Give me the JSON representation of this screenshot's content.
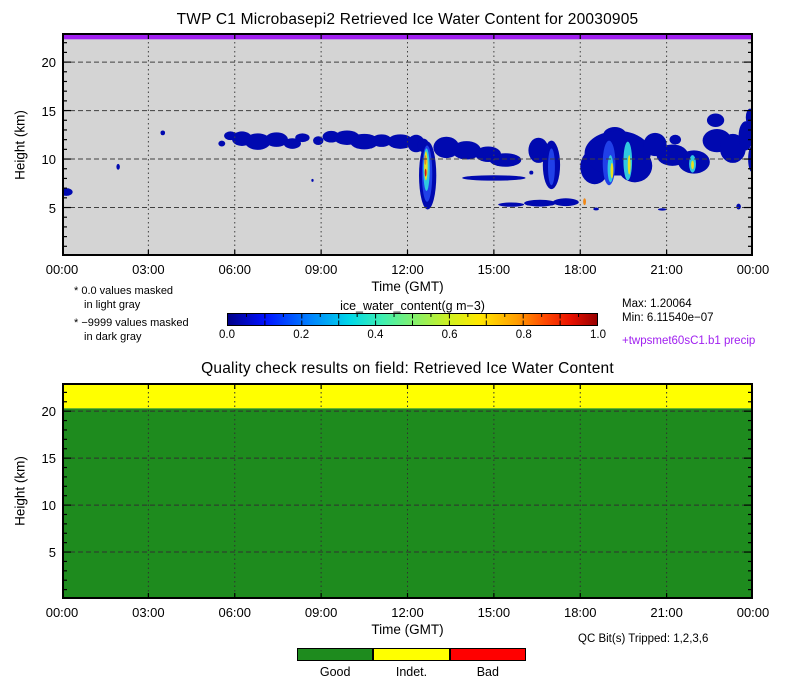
{
  "colors": {
    "plot_bg_gray": "#d4d4d4",
    "precip_purple": "#a020f0",
    "grid": "#404040",
    "palette": {
      "navy": "#0009b0",
      "blue": "#2040e8",
      "cyan": "#30c8e0",
      "green": "#50d860",
      "yellow": "#e8e020",
      "orange": "#f08818",
      "red": "#d81810"
    }
  },
  "top_chart": {
    "title": "TWP C1 Microbasepi2 Retrieved Ice Water Content for 20030905",
    "ylabel": "Height (km)",
    "xlabel": "Time (GMT)",
    "x_ticks": [
      "00:00",
      "03:00",
      "06:00",
      "09:00",
      "12:00",
      "15:00",
      "18:00",
      "21:00",
      "00:00"
    ],
    "y_ticks": [
      "20",
      "15",
      "10",
      "5"
    ]
  },
  "notes": {
    "masked_note_1a": "* 0.0 values masked",
    "masked_note_1b": "in light gray",
    "masked_note_2a": "* −9999 values masked",
    "masked_note_2b": "in dark gray",
    "max_label": "Max: 1.20064",
    "min_label": "Min: 6.11540e−07",
    "precip_label": "+twpsmet60sC1.b1 precip"
  },
  "colorbar": {
    "title": "ice_water_content(g m−3)",
    "tick_labels": [
      "0.0",
      "0.2",
      "0.4",
      "0.6",
      "0.8",
      "1.0"
    ]
  },
  "qc_chart": {
    "title": "Quality check results on field: Retrieved Ice Water Content",
    "ylabel": "Height (km)",
    "xlabel": "Time (GMT)",
    "x_ticks": [
      "00:00",
      "03:00",
      "06:00",
      "09:00",
      "12:00",
      "15:00",
      "18:00",
      "21:00",
      "00:00"
    ],
    "y_ticks": [
      "20",
      "15",
      "10",
      "5"
    ],
    "qc_bits_label": "QC Bit(s) Tripped: 1,2,3,6"
  },
  "qc_legend": {
    "items": [
      {
        "label": "Good",
        "color": "#1e8b1e"
      },
      {
        "label": "Indet.",
        "color": "#ffff00"
      },
      {
        "label": "Bad",
        "color": "#ff0000"
      }
    ]
  },
  "chart_data": [
    {
      "type": "heatmap",
      "title": "TWP C1 Microbasepi2 Retrieved Ice Water Content for 20030905",
      "xlabel": "Time (GMT)",
      "ylabel": "Height (km)",
      "xlim_hours": [
        0,
        24
      ],
      "ylim_km": [
        0,
        23
      ],
      "x_tick_hours": [
        0,
        3,
        6,
        9,
        12,
        15,
        18,
        21,
        24
      ],
      "y_tick_km": [
        5,
        10,
        15,
        20
      ],
      "grid": true,
      "value_field": "ice_water_content(g m-3)",
      "value_range": [
        0.0,
        1.0
      ],
      "colorbar_ticks": [
        0.0,
        0.2,
        0.4,
        0.6,
        0.8,
        1.0
      ],
      "stats": {
        "max": 1.20064,
        "min": 6.1154e-07
      },
      "masking": [
        "0.0 values masked in light gray",
        "-9999 values masked in dark gray"
      ],
      "precip_band": {
        "label": "+twpsmet60sC1.b1 precip",
        "color": "#a020f0",
        "hours": [
          0,
          24
        ],
        "km": [
          22.35,
          23
        ]
      },
      "clouds_note": "blobs as [hour, km, half_width_h, half_height_km, level(optional, default navy ~0.05 g/m3; cyan~0.4; yellow~0.7; orange~0.85; red~1.0)]",
      "clouds": [
        [
          0.15,
          6.6,
          0.22,
          0.4
        ],
        [
          1.95,
          9.2,
          0.06,
          0.3
        ],
        [
          3.5,
          12.7,
          0.08,
          0.25
        ],
        [
          5.55,
          11.6,
          0.12,
          0.3
        ],
        [
          5.85,
          12.4,
          0.22,
          0.45
        ],
        [
          6.25,
          12.1,
          0.35,
          0.75
        ],
        [
          6.8,
          11.8,
          0.45,
          0.85
        ],
        [
          7.45,
          12.0,
          0.4,
          0.75
        ],
        [
          8.0,
          11.6,
          0.3,
          0.55
        ],
        [
          8.35,
          12.2,
          0.25,
          0.45
        ],
        [
          8.7,
          7.8,
          0.04,
          0.15
        ],
        [
          8.9,
          11.9,
          0.18,
          0.45
        ],
        [
          9.35,
          12.3,
          0.3,
          0.6
        ],
        [
          9.9,
          12.2,
          0.45,
          0.75
        ],
        [
          10.5,
          11.8,
          0.5,
          0.8
        ],
        [
          11.1,
          11.9,
          0.35,
          0.65
        ],
        [
          11.75,
          11.8,
          0.45,
          0.75
        ],
        [
          12.3,
          11.6,
          0.3,
          0.9
        ],
        [
          12.55,
          11.4,
          0.2,
          0.7
        ],
        [
          12.7,
          8.3,
          0.3,
          3.5
        ],
        [
          12.68,
          8.5,
          0.18,
          2.9,
          "blue"
        ],
        [
          12.66,
          8.9,
          0.11,
          2.2,
          "cyan"
        ],
        [
          12.64,
          9.3,
          0.06,
          1.5,
          "yellow"
        ],
        [
          12.62,
          9.9,
          0.035,
          0.5,
          "orange"
        ],
        [
          12.63,
          8.6,
          0.03,
          0.4,
          "red"
        ],
        [
          13.35,
          11.2,
          0.45,
          1.1
        ],
        [
          14.05,
          10.9,
          0.5,
          0.95
        ],
        [
          14.8,
          10.5,
          0.45,
          0.8
        ],
        [
          15.4,
          9.9,
          0.55,
          0.7
        ],
        [
          15.0,
          8.05,
          1.1,
          0.28
        ],
        [
          15.6,
          5.3,
          0.45,
          0.22
        ],
        [
          16.3,
          8.6,
          0.07,
          0.2
        ],
        [
          16.55,
          10.9,
          0.35,
          1.3
        ],
        [
          16.6,
          5.45,
          0.55,
          0.35
        ],
        [
          17.0,
          9.4,
          0.3,
          2.5
        ],
        [
          17.0,
          9.2,
          0.12,
          1.9,
          "blue"
        ],
        [
          17.5,
          5.55,
          0.45,
          0.4
        ],
        [
          18.15,
          5.6,
          0.05,
          0.35,
          "orange"
        ],
        [
          18.5,
          9.2,
          0.5,
          1.8
        ],
        [
          18.55,
          4.85,
          0.1,
          0.15
        ],
        [
          19.2,
          12.5,
          0.4,
          0.8
        ],
        [
          19.3,
          10.6,
          1.15,
          2.3
        ],
        [
          19.9,
          9.3,
          0.6,
          1.7
        ],
        [
          19.0,
          9.6,
          0.22,
          2.3,
          "blue"
        ],
        [
          19.05,
          9.0,
          0.1,
          1.4,
          "cyan"
        ],
        [
          19.1,
          8.8,
          0.05,
          0.8,
          "yellow"
        ],
        [
          19.65,
          9.8,
          0.15,
          2.0,
          "cyan"
        ],
        [
          19.7,
          9.4,
          0.05,
          1.0,
          "yellow"
        ],
        [
          20.6,
          11.5,
          0.4,
          1.2
        ],
        [
          20.85,
          4.8,
          0.15,
          0.12
        ],
        [
          21.2,
          10.4,
          0.55,
          1.1
        ],
        [
          21.3,
          12.0,
          0.2,
          0.5
        ],
        [
          21.95,
          9.7,
          0.55,
          1.2
        ],
        [
          21.9,
          9.5,
          0.12,
          0.9,
          "cyan"
        ],
        [
          21.9,
          9.4,
          0.05,
          0.45,
          "yellow"
        ],
        [
          22.7,
          14.0,
          0.3,
          0.7
        ],
        [
          22.75,
          11.9,
          0.5,
          1.2
        ],
        [
          23.3,
          11.1,
          0.45,
          1.5
        ],
        [
          23.5,
          5.1,
          0.08,
          0.3
        ],
        [
          23.75,
          12.4,
          0.25,
          1.5
        ],
        [
          23.9,
          14.3,
          0.15,
          0.9
        ],
        [
          23.95,
          10.0,
          0.12,
          1.3
        ]
      ]
    },
    {
      "type": "heatmap",
      "title": "Quality check results on field: Retrieved Ice Water Content",
      "xlabel": "Time (GMT)",
      "ylabel": "Height (km)",
      "xlim_hours": [
        0,
        24
      ],
      "ylim_km": [
        0,
        23
      ],
      "x_tick_hours": [
        0,
        3,
        6,
        9,
        12,
        15,
        18,
        21,
        24
      ],
      "y_tick_km": [
        5,
        10,
        15,
        20
      ],
      "grid": true,
      "legend": [
        "Good",
        "Indet.",
        "Bad"
      ],
      "qc_bits_tripped": [
        1,
        2,
        3,
        6
      ],
      "regions": [
        {
          "quality": "Indet.",
          "color": "#ffff00",
          "hours": [
            0,
            24
          ],
          "km": [
            20.3,
            23
          ]
        },
        {
          "quality": "Good",
          "color": "#1e8b1e",
          "hours": [
            0,
            24
          ],
          "km": [
            0,
            20.3
          ]
        }
      ]
    }
  ]
}
